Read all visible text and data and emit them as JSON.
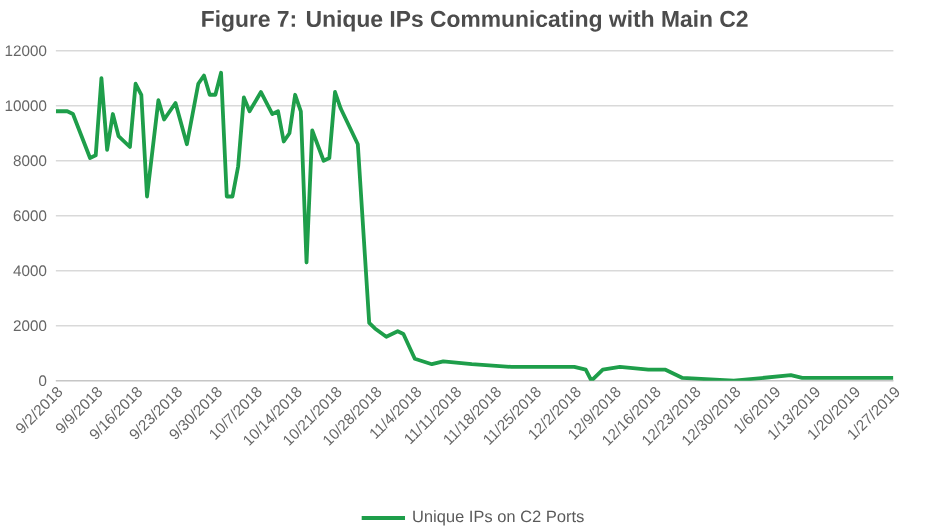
{
  "chart_data": {
    "type": "line",
    "title": "Figure 7: Unique IPs Communicating  with Main C2",
    "x": [
      "2018-09-02",
      "2018-09-04",
      "2018-09-05",
      "2018-09-08",
      "2018-09-09",
      "2018-09-10",
      "2018-09-11",
      "2018-09-12",
      "2018-09-13",
      "2018-09-15",
      "2018-09-16",
      "2018-09-17",
      "2018-09-18",
      "2018-09-20",
      "2018-09-21",
      "2018-09-23",
      "2018-09-25",
      "2018-09-27",
      "2018-09-28",
      "2018-09-29",
      "2018-09-30",
      "2018-10-01",
      "2018-10-02",
      "2018-10-03",
      "2018-10-04",
      "2018-10-05",
      "2018-10-06",
      "2018-10-08",
      "2018-10-10",
      "2018-10-11",
      "2018-10-12",
      "2018-10-13",
      "2018-10-14",
      "2018-10-15",
      "2018-10-16",
      "2018-10-17",
      "2018-10-19",
      "2018-10-20",
      "2018-10-21",
      "2018-10-22",
      "2018-10-25",
      "2018-10-27",
      "2018-10-28",
      "2018-10-30",
      "2018-11-01",
      "2018-11-02",
      "2018-11-04",
      "2018-11-07",
      "2018-11-09",
      "2018-11-14",
      "2018-11-21",
      "2018-12-02",
      "2018-12-04",
      "2018-12-05",
      "2018-12-07",
      "2018-12-10",
      "2018-12-15",
      "2018-12-18",
      "2018-12-21",
      "2018-12-30",
      "2019-01-09",
      "2019-01-11",
      "2019-01-21",
      "2019-01-27"
    ],
    "series": [
      {
        "name": "Unique IPs on C2 Ports",
        "color": "#1e9e4a",
        "values": [
          9800,
          9800,
          9700,
          8100,
          8200,
          11000,
          8400,
          9700,
          8900,
          8500,
          10800,
          10400,
          6700,
          10200,
          9500,
          10100,
          8600,
          10800,
          11100,
          10400,
          10400,
          11200,
          6700,
          6700,
          7800,
          10300,
          9800,
          10500,
          9700,
          9800,
          8700,
          9000,
          10400,
          9800,
          4300,
          9100,
          8000,
          8100,
          10500,
          9900,
          8600,
          2100,
          1900,
          1600,
          1800,
          1700,
          800,
          600,
          700,
          600,
          500,
          500,
          400,
          0,
          400,
          500,
          400,
          400,
          100,
          0,
          200,
          100,
          100,
          100
        ]
      }
    ],
    "xlim": [
      "2018-09-02",
      "2019-01-27"
    ],
    "xticks": [
      {
        "value": "2018-09-02",
        "label": "9/2/2018"
      },
      {
        "value": "2018-09-09",
        "label": "9/9/2018"
      },
      {
        "value": "2018-09-16",
        "label": "9/16/2018"
      },
      {
        "value": "2018-09-23",
        "label": "9/23/2018"
      },
      {
        "value": "2018-09-30",
        "label": "9/30/2018"
      },
      {
        "value": "2018-10-07",
        "label": "10/7/2018"
      },
      {
        "value": "2018-10-14",
        "label": "10/14/2018"
      },
      {
        "value": "2018-10-21",
        "label": "10/21/2018"
      },
      {
        "value": "2018-10-28",
        "label": "10/28/2018"
      },
      {
        "value": "2018-11-04",
        "label": "11/4/2018"
      },
      {
        "value": "2018-11-11",
        "label": "11/11/2018"
      },
      {
        "value": "2018-11-18",
        "label": "11/18/2018"
      },
      {
        "value": "2018-11-25",
        "label": "11/25/2018"
      },
      {
        "value": "2018-12-02",
        "label": "12/2/2018"
      },
      {
        "value": "2018-12-09",
        "label": "12/9/2018"
      },
      {
        "value": "2018-12-16",
        "label": "12/16/2018"
      },
      {
        "value": "2018-12-23",
        "label": "12/23/2018"
      },
      {
        "value": "2018-12-30",
        "label": "12/30/2018"
      },
      {
        "value": "2019-01-06",
        "label": "1/6/2019"
      },
      {
        "value": "2019-01-13",
        "label": "1/13/2019"
      },
      {
        "value": "2019-01-20",
        "label": "1/20/2019"
      },
      {
        "value": "2019-01-27",
        "label": "1/27/2019"
      }
    ],
    "ylim": [
      0,
      12000
    ],
    "yticks": [
      0,
      2000,
      4000,
      6000,
      8000,
      10000,
      12000
    ],
    "grid": "y",
    "legend": "bottom",
    "marker": "none",
    "line_style": "solid"
  }
}
